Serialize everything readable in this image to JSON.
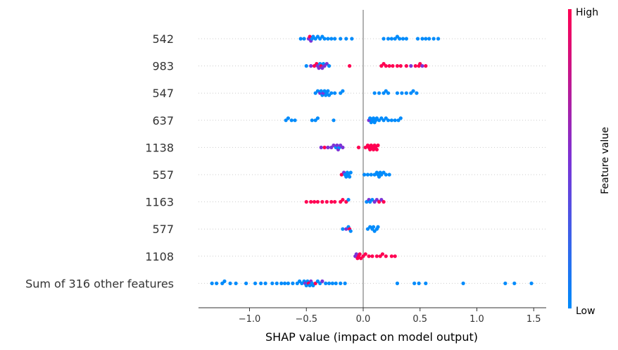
{
  "chart_data": {
    "type": "scatter",
    "subtype": "shap-beeswarm",
    "xlabel": "SHAP value (impact on model output)",
    "xlim": [
      -1.45,
      1.6
    ],
    "xticks": [
      {
        "value": -1.0,
        "label": "−1.0"
      },
      {
        "value": -0.5,
        "label": "−0.5"
      },
      {
        "value": 0.0,
        "label": "0.0"
      },
      {
        "value": 0.5,
        "label": "0.5"
      },
      {
        "value": 1.0,
        "label": "1.0"
      },
      {
        "value": 1.5,
        "label": "1.5"
      }
    ],
    "features": [
      "542",
      "983",
      "547",
      "637",
      "1138",
      "557",
      "1163",
      "577",
      "1108",
      "Sum of 316 other features"
    ],
    "colorbar": {
      "label": "Feature value",
      "high": "High",
      "low": "Low",
      "high_color": "#ff0052",
      "low_color": "#008bfb",
      "mid_color": "#7c33d6"
    },
    "gridlines": "dotted horizontal per feature",
    "zero_line": 0.0,
    "points": [
      [
        [
          -0.55,
          "L"
        ],
        [
          -0.52,
          "L"
        ],
        [
          -0.48,
          "M"
        ],
        [
          -0.47,
          "H"
        ],
        [
          -0.46,
          "M"
        ],
        [
          -0.45,
          "L"
        ],
        [
          -0.44,
          "L"
        ],
        [
          -0.42,
          "L"
        ],
        [
          -0.4,
          "L"
        ],
        [
          -0.38,
          "L"
        ],
        [
          -0.36,
          "L"
        ],
        [
          -0.34,
          "L"
        ],
        [
          -0.31,
          "L"
        ],
        [
          -0.28,
          "L"
        ],
        [
          -0.25,
          "L"
        ],
        [
          -0.2,
          "L"
        ],
        [
          -0.15,
          "L"
        ],
        [
          -0.1,
          "L"
        ],
        [
          0.18,
          "L"
        ],
        [
          0.22,
          "L"
        ],
        [
          0.25,
          "L"
        ],
        [
          0.28,
          "L"
        ],
        [
          0.3,
          "L"
        ],
        [
          0.32,
          "L"
        ],
        [
          0.35,
          "L"
        ],
        [
          0.38,
          "L"
        ],
        [
          0.48,
          "L"
        ],
        [
          0.52,
          "L"
        ],
        [
          0.55,
          "L"
        ],
        [
          0.58,
          "L"
        ],
        [
          0.62,
          "L"
        ],
        [
          0.66,
          "L"
        ]
      ],
      [
        [
          -0.5,
          "L"
        ],
        [
          -0.46,
          "M"
        ],
        [
          -0.43,
          "H"
        ],
        [
          -0.41,
          "H"
        ],
        [
          -0.4,
          "M"
        ],
        [
          -0.39,
          "M"
        ],
        [
          -0.38,
          "L"
        ],
        [
          -0.37,
          "H"
        ],
        [
          -0.36,
          "M"
        ],
        [
          -0.35,
          "L"
        ],
        [
          -0.34,
          "M"
        ],
        [
          -0.32,
          "M"
        ],
        [
          -0.3,
          "L"
        ],
        [
          -0.12,
          "H"
        ],
        [
          0.16,
          "H"
        ],
        [
          0.18,
          "H"
        ],
        [
          0.2,
          "H"
        ],
        [
          0.23,
          "H"
        ],
        [
          0.26,
          "H"
        ],
        [
          0.3,
          "H"
        ],
        [
          0.33,
          "H"
        ],
        [
          0.38,
          "H"
        ],
        [
          0.42,
          "M"
        ],
        [
          0.46,
          "H"
        ],
        [
          0.49,
          "H"
        ],
        [
          0.5,
          "H"
        ],
        [
          0.52,
          "M"
        ],
        [
          0.55,
          "H"
        ]
      ],
      [
        [
          -0.42,
          "L"
        ],
        [
          -0.4,
          "L"
        ],
        [
          -0.38,
          "M"
        ],
        [
          -0.37,
          "L"
        ],
        [
          -0.36,
          "L"
        ],
        [
          -0.35,
          "M"
        ],
        [
          -0.34,
          "L"
        ],
        [
          -0.33,
          "L"
        ],
        [
          -0.32,
          "L"
        ],
        [
          -0.31,
          "L"
        ],
        [
          -0.3,
          "L"
        ],
        [
          -0.28,
          "L"
        ],
        [
          -0.25,
          "L"
        ],
        [
          -0.2,
          "L"
        ],
        [
          -0.18,
          "L"
        ],
        [
          0.1,
          "L"
        ],
        [
          0.14,
          "L"
        ],
        [
          0.18,
          "L"
        ],
        [
          0.2,
          "L"
        ],
        [
          0.22,
          "L"
        ],
        [
          0.3,
          "L"
        ],
        [
          0.34,
          "L"
        ],
        [
          0.38,
          "L"
        ],
        [
          0.42,
          "L"
        ],
        [
          0.44,
          "L"
        ],
        [
          0.47,
          "L"
        ]
      ],
      [
        [
          -0.68,
          "L"
        ],
        [
          -0.66,
          "L"
        ],
        [
          -0.63,
          "L"
        ],
        [
          -0.6,
          "L"
        ],
        [
          -0.45,
          "L"
        ],
        [
          -0.42,
          "L"
        ],
        [
          -0.4,
          "L"
        ],
        [
          -0.26,
          "L"
        ],
        [
          0.05,
          "M"
        ],
        [
          0.06,
          "L"
        ],
        [
          0.07,
          "L"
        ],
        [
          0.08,
          "L"
        ],
        [
          0.09,
          "L"
        ],
        [
          0.1,
          "L"
        ],
        [
          0.11,
          "L"
        ],
        [
          0.12,
          "L"
        ],
        [
          0.14,
          "L"
        ],
        [
          0.16,
          "L"
        ],
        [
          0.18,
          "L"
        ],
        [
          0.2,
          "L"
        ],
        [
          0.22,
          "L"
        ],
        [
          0.25,
          "L"
        ],
        [
          0.28,
          "L"
        ],
        [
          0.31,
          "L"
        ],
        [
          0.33,
          "L"
        ]
      ],
      [
        [
          -0.37,
          "M"
        ],
        [
          -0.34,
          "H"
        ],
        [
          -0.31,
          "M"
        ],
        [
          -0.28,
          "M"
        ],
        [
          -0.26,
          "M"
        ],
        [
          -0.24,
          "L"
        ],
        [
          -0.23,
          "M"
        ],
        [
          -0.22,
          "M"
        ],
        [
          -0.21,
          "L"
        ],
        [
          -0.2,
          "M"
        ],
        [
          -0.18,
          "M"
        ],
        [
          -0.04,
          "H"
        ],
        [
          0.02,
          "H"
        ],
        [
          0.04,
          "H"
        ],
        [
          0.05,
          "H"
        ],
        [
          0.06,
          "H"
        ],
        [
          0.07,
          "H"
        ],
        [
          0.08,
          "H"
        ],
        [
          0.09,
          "H"
        ],
        [
          0.1,
          "H"
        ],
        [
          0.11,
          "H"
        ],
        [
          0.12,
          "H"
        ],
        [
          0.13,
          "H"
        ]
      ],
      [
        [
          -0.19,
          "H"
        ],
        [
          -0.17,
          "M"
        ],
        [
          -0.16,
          "L"
        ],
        [
          -0.15,
          "L"
        ],
        [
          -0.14,
          "L"
        ],
        [
          -0.13,
          "L"
        ],
        [
          -0.12,
          "L"
        ],
        [
          -0.11,
          "L"
        ],
        [
          0.01,
          "L"
        ],
        [
          0.04,
          "L"
        ],
        [
          0.07,
          "L"
        ],
        [
          0.1,
          "L"
        ],
        [
          0.12,
          "L"
        ],
        [
          0.13,
          "L"
        ],
        [
          0.14,
          "L"
        ],
        [
          0.15,
          "L"
        ],
        [
          0.16,
          "L"
        ],
        [
          0.18,
          "L"
        ],
        [
          0.2,
          "L"
        ],
        [
          0.23,
          "L"
        ]
      ],
      [
        [
          -0.5,
          "H"
        ],
        [
          -0.46,
          "H"
        ],
        [
          -0.43,
          "H"
        ],
        [
          -0.4,
          "H"
        ],
        [
          -0.36,
          "H"
        ],
        [
          -0.32,
          "H"
        ],
        [
          -0.28,
          "H"
        ],
        [
          -0.25,
          "H"
        ],
        [
          -0.2,
          "H"
        ],
        [
          -0.18,
          "H"
        ],
        [
          -0.15,
          "H"
        ],
        [
          -0.13,
          "L"
        ],
        [
          0.03,
          "L"
        ],
        [
          0.05,
          "M"
        ],
        [
          0.06,
          "L"
        ],
        [
          0.08,
          "L"
        ],
        [
          0.1,
          "M"
        ],
        [
          0.12,
          "M"
        ],
        [
          0.14,
          "H"
        ],
        [
          0.16,
          "M"
        ],
        [
          0.18,
          "H"
        ]
      ],
      [
        [
          -0.18,
          "L"
        ],
        [
          -0.15,
          "M"
        ],
        [
          -0.13,
          "L"
        ],
        [
          -0.12,
          "H"
        ],
        [
          -0.11,
          "L"
        ],
        [
          0.04,
          "L"
        ],
        [
          0.06,
          "L"
        ],
        [
          0.08,
          "L"
        ],
        [
          0.09,
          "L"
        ],
        [
          0.1,
          "L"
        ],
        [
          0.12,
          "L"
        ],
        [
          0.13,
          "L"
        ]
      ],
      [
        [
          -0.07,
          "M"
        ],
        [
          -0.06,
          "M"
        ],
        [
          -0.05,
          "H"
        ],
        [
          -0.04,
          "H"
        ],
        [
          -0.03,
          "H"
        ],
        [
          -0.02,
          "H"
        ],
        [
          0.0,
          "H"
        ],
        [
          0.02,
          "H"
        ],
        [
          0.05,
          "H"
        ],
        [
          0.08,
          "H"
        ],
        [
          0.12,
          "H"
        ],
        [
          0.15,
          "H"
        ],
        [
          0.17,
          "H"
        ],
        [
          0.2,
          "H"
        ],
        [
          0.25,
          "H"
        ],
        [
          0.28,
          "H"
        ]
      ],
      [
        [
          -1.33,
          "L"
        ],
        [
          -1.29,
          "L"
        ],
        [
          -1.24,
          "L"
        ],
        [
          -1.22,
          "L"
        ],
        [
          -1.17,
          "L"
        ],
        [
          -1.12,
          "L"
        ],
        [
          -1.03,
          "L"
        ],
        [
          -0.95,
          "L"
        ],
        [
          -0.9,
          "L"
        ],
        [
          -0.86,
          "L"
        ],
        [
          -0.8,
          "L"
        ],
        [
          -0.76,
          "L"
        ],
        [
          -0.72,
          "L"
        ],
        [
          -0.69,
          "L"
        ],
        [
          -0.66,
          "L"
        ],
        [
          -0.62,
          "L"
        ],
        [
          -0.58,
          "L"
        ],
        [
          -0.56,
          "L"
        ],
        [
          -0.54,
          "L"
        ],
        [
          -0.52,
          "L"
        ],
        [
          -0.51,
          "M"
        ],
        [
          -0.5,
          "L"
        ],
        [
          -0.49,
          "L"
        ],
        [
          -0.48,
          "H"
        ],
        [
          -0.47,
          "L"
        ],
        [
          -0.46,
          "M"
        ],
        [
          -0.45,
          "L"
        ],
        [
          -0.44,
          "L"
        ],
        [
          -0.42,
          "H"
        ],
        [
          -0.4,
          "L"
        ],
        [
          -0.38,
          "L"
        ],
        [
          -0.36,
          "M"
        ],
        [
          -0.33,
          "L"
        ],
        [
          -0.3,
          "L"
        ],
        [
          -0.27,
          "L"
        ],
        [
          -0.24,
          "L"
        ],
        [
          -0.2,
          "L"
        ],
        [
          -0.16,
          "L"
        ],
        [
          0.3,
          "L"
        ],
        [
          0.45,
          "L"
        ],
        [
          0.49,
          "L"
        ],
        [
          0.55,
          "L"
        ],
        [
          0.88,
          "L"
        ],
        [
          1.25,
          "L"
        ],
        [
          1.33,
          "L"
        ],
        [
          1.48,
          "L"
        ]
      ]
    ]
  }
}
